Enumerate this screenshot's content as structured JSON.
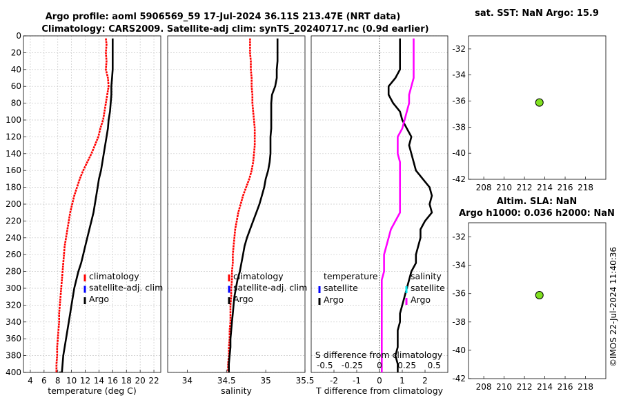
{
  "title_line1": "Argo profile: aoml 5906569_59 17-Jul-2024 36.11S 213.47E (NRT data)",
  "title_line2": "Climatology: CARS2009. Satellite-adj clim: synTS_20240717.nc (0.9d earlier)",
  "watermark": "©IMOS 22-Jul-2024 11:40:36",
  "colors": {
    "red": "#ff0000",
    "blue": "#0000ff",
    "black": "#000000",
    "magenta": "#ff00ff",
    "cyan": "#00e5ee",
    "marker": "#80e020"
  },
  "chart_data": [
    {
      "id": "temperature",
      "type": "line",
      "xlabel": "temperature (deg C)",
      "xlim": [
        3,
        23
      ],
      "ylim": [
        0,
        400
      ],
      "xticks": [
        4,
        6,
        8,
        10,
        12,
        14,
        16,
        18,
        20,
        22
      ],
      "yticks": [
        0,
        20,
        40,
        60,
        80,
        100,
        120,
        140,
        160,
        180,
        200,
        220,
        240,
        260,
        280,
        300,
        320,
        340,
        360,
        380,
        400
      ],
      "legend": [
        "climatology",
        "satellite-adj. clim",
        "Argo"
      ],
      "series": [
        {
          "name": "climatology",
          "color": "red",
          "x": [
            15.0,
            15.1,
            15.0,
            15.1,
            15.0,
            15.3,
            15.4,
            15.2,
            15.0,
            14.8,
            14.6,
            14.2,
            13.9,
            13.4,
            12.9,
            12.3,
            11.7,
            11.2,
            10.8,
            10.4,
            10.1,
            9.8,
            9.6,
            9.4,
            9.2,
            9.0,
            8.9,
            8.8,
            8.7,
            8.6,
            8.5,
            8.4,
            8.3,
            8.2,
            8.2,
            8.1,
            8.0,
            7.9,
            7.9,
            7.8,
            7.8
          ],
          "depth": [
            3,
            10,
            20,
            30,
            40,
            50,
            60,
            70,
            80,
            90,
            100,
            110,
            120,
            130,
            140,
            150,
            160,
            170,
            180,
            190,
            200,
            210,
            220,
            230,
            240,
            250,
            260,
            270,
            280,
            290,
            300,
            310,
            320,
            330,
            340,
            350,
            360,
            370,
            380,
            390,
            400
          ]
        },
        {
          "name": "Argo",
          "color": "black",
          "x": [
            16.0,
            16.0,
            16.0,
            16.0,
            16.0,
            15.9,
            15.8,
            15.8,
            15.7,
            15.6,
            15.4,
            15.3,
            15.1,
            14.9,
            14.7,
            14.5,
            14.3,
            14.0,
            13.8,
            13.6,
            13.4,
            13.2,
            12.9,
            12.6,
            12.3,
            12.0,
            11.7,
            11.4,
            11.0,
            10.7,
            10.4,
            10.2,
            10.0,
            9.8,
            9.6,
            9.4,
            9.2,
            9.0,
            8.8,
            8.7,
            8.6,
            8.6,
            8.4,
            8.3,
            8.2,
            8.2
          ],
          "depth": [
            3,
            10,
            20,
            30,
            40,
            50,
            60,
            70,
            80,
            90,
            100,
            110,
            120,
            130,
            140,
            150,
            160,
            170,
            180,
            190,
            200,
            210,
            220,
            230,
            240,
            250,
            260,
            270,
            280,
            290,
            300,
            310,
            320,
            330,
            340,
            350,
            360,
            370,
            380,
            390,
            400,
            400,
            400,
            400,
            400,
            400
          ]
        }
      ]
    },
    {
      "id": "salinity",
      "type": "line",
      "xlabel": "salinity",
      "xlim": [
        33.75,
        35.5
      ],
      "ylim": [
        0,
        400
      ],
      "xticks": [
        34,
        34.5,
        35,
        35.5
      ],
      "xtick_labels": [
        "34",
        "34.5",
        "35",
        "35.5"
      ],
      "legend": [
        "climatology",
        "satellite-adj. clim",
        "Argo"
      ],
      "series": [
        {
          "name": "climatology",
          "color": "red",
          "x": [
            34.8,
            34.8,
            34.8,
            34.81,
            34.81,
            34.82,
            34.82,
            34.83,
            34.83,
            34.84,
            34.85,
            34.86,
            34.86,
            34.86,
            34.85,
            34.84,
            34.82,
            34.79,
            34.75,
            34.71,
            34.68,
            34.65,
            34.63,
            34.61,
            34.6,
            34.59,
            34.58,
            34.58,
            34.57,
            34.57,
            34.56,
            34.56,
            34.55,
            34.55,
            34.55,
            34.54,
            34.54,
            34.53,
            34.53,
            34.52,
            34.52
          ],
          "depth": [
            3,
            10,
            20,
            30,
            40,
            50,
            60,
            70,
            80,
            90,
            100,
            110,
            120,
            130,
            140,
            150,
            160,
            170,
            180,
            190,
            200,
            210,
            220,
            230,
            240,
            250,
            260,
            270,
            280,
            290,
            300,
            310,
            320,
            330,
            340,
            350,
            360,
            370,
            380,
            390,
            400
          ]
        },
        {
          "name": "Argo",
          "color": "black",
          "x": [
            35.15,
            35.15,
            35.15,
            35.15,
            35.14,
            35.14,
            35.12,
            35.08,
            35.07,
            35.07,
            35.07,
            35.07,
            35.06,
            35.06,
            35.06,
            35.05,
            35.03,
            35.0,
            34.98,
            34.95,
            34.92,
            34.88,
            34.84,
            34.8,
            34.76,
            34.73,
            34.71,
            34.69,
            34.67,
            34.64,
            34.62,
            34.6,
            34.59,
            34.58,
            34.57,
            34.56,
            34.55,
            34.55,
            34.54,
            34.53,
            34.53
          ],
          "depth": [
            3,
            10,
            20,
            30,
            40,
            50,
            60,
            70,
            80,
            90,
            100,
            110,
            120,
            130,
            140,
            150,
            160,
            170,
            180,
            190,
            200,
            210,
            220,
            230,
            240,
            250,
            260,
            270,
            280,
            290,
            300,
            310,
            320,
            330,
            340,
            350,
            360,
            370,
            380,
            390,
            400
          ]
        }
      ]
    },
    {
      "id": "difference",
      "type": "line",
      "xlabel": "T difference from climatology",
      "xlabel_top": "S difference from climatology",
      "xlim": [
        -3,
        3
      ],
      "ylim": [
        0,
        400
      ],
      "xticks": [
        -2,
        -1,
        0,
        1,
        2
      ],
      "xticks_top_labels": [
        "-0.5",
        "-0.25",
        "0",
        "0.25",
        "0.5"
      ],
      "xticks_top_values": [
        -2.4,
        -1.2,
        0,
        1.2,
        2.4
      ],
      "legend_temperature": {
        "title": "temperature",
        "items": [
          "satellite",
          "Argo"
        ]
      },
      "legend_salinity": {
        "title": "salinity",
        "items": [
          "satellite",
          "Argo"
        ]
      },
      "series": [
        {
          "name": "T difference",
          "color": "black",
          "x": [
            0.9,
            0.9,
            0.9,
            0.9,
            0.9,
            0.7,
            0.4,
            0.4,
            0.6,
            0.9,
            1.0,
            1.2,
            1.4,
            1.3,
            1.4,
            1.5,
            1.6,
            1.9,
            2.2,
            2.3,
            2.2,
            2.3,
            2.0,
            1.8,
            1.8,
            1.7,
            1.6,
            1.6,
            1.4,
            1.3,
            1.2,
            1.1,
            1.0,
            0.9,
            0.9,
            0.8,
            0.8,
            0.8,
            0.7,
            0.8,
            0.8
          ],
          "depth": [
            3,
            10,
            20,
            30,
            40,
            50,
            60,
            70,
            80,
            90,
            100,
            110,
            120,
            130,
            140,
            150,
            160,
            170,
            180,
            190,
            200,
            210,
            220,
            230,
            240,
            250,
            260,
            270,
            280,
            290,
            300,
            310,
            320,
            330,
            340,
            350,
            360,
            370,
            380,
            390,
            400
          ]
        },
        {
          "name": "S difference",
          "color": "magenta",
          "x": [
            1.5,
            1.5,
            1.5,
            1.5,
            1.5,
            1.5,
            1.4,
            1.3,
            1.3,
            1.2,
            1.1,
            1.0,
            0.8,
            0.8,
            0.8,
            0.9,
            0.9,
            0.9,
            0.9,
            0.9,
            0.9,
            0.9,
            0.7,
            0.5,
            0.4,
            0.3,
            0.2,
            0.2,
            0.2,
            0.1,
            0.1,
            0.1,
            0.1,
            0.1,
            0.1,
            0.1,
            0.1,
            0.1,
            0.1,
            0.1,
            0.1
          ],
          "depth": [
            3,
            10,
            20,
            30,
            40,
            50,
            60,
            70,
            80,
            90,
            100,
            110,
            120,
            130,
            140,
            150,
            160,
            170,
            180,
            190,
            200,
            210,
            220,
            230,
            240,
            250,
            260,
            270,
            280,
            290,
            300,
            310,
            320,
            330,
            340,
            350,
            360,
            370,
            380,
            390,
            400
          ]
        }
      ]
    },
    {
      "id": "sst_map",
      "type": "scatter",
      "title": "sat. SST: NaN Argo: 15.9",
      "xlim": [
        206.5,
        220
      ],
      "ylim": [
        -42,
        -31
      ],
      "xticks": [
        208,
        210,
        212,
        214,
        216,
        218
      ],
      "yticks": [
        -32,
        -34,
        -36,
        -38,
        -40,
        -42
      ],
      "points": [
        {
          "lon": 213.47,
          "lat": -36.11
        }
      ]
    },
    {
      "id": "sla_map",
      "type": "scatter",
      "title_line1": "Altim. SLA: NaN",
      "title_line2": "Argo h1000: 0.036 h2000: NaN",
      "xlim": [
        206.5,
        220
      ],
      "ylim": [
        -42,
        -31
      ],
      "xticks": [
        208,
        210,
        212,
        214,
        216,
        218
      ],
      "yticks": [
        -32,
        -34,
        -36,
        -38,
        -40,
        -42
      ],
      "points": [
        {
          "lon": 213.47,
          "lat": -36.11
        }
      ]
    }
  ]
}
